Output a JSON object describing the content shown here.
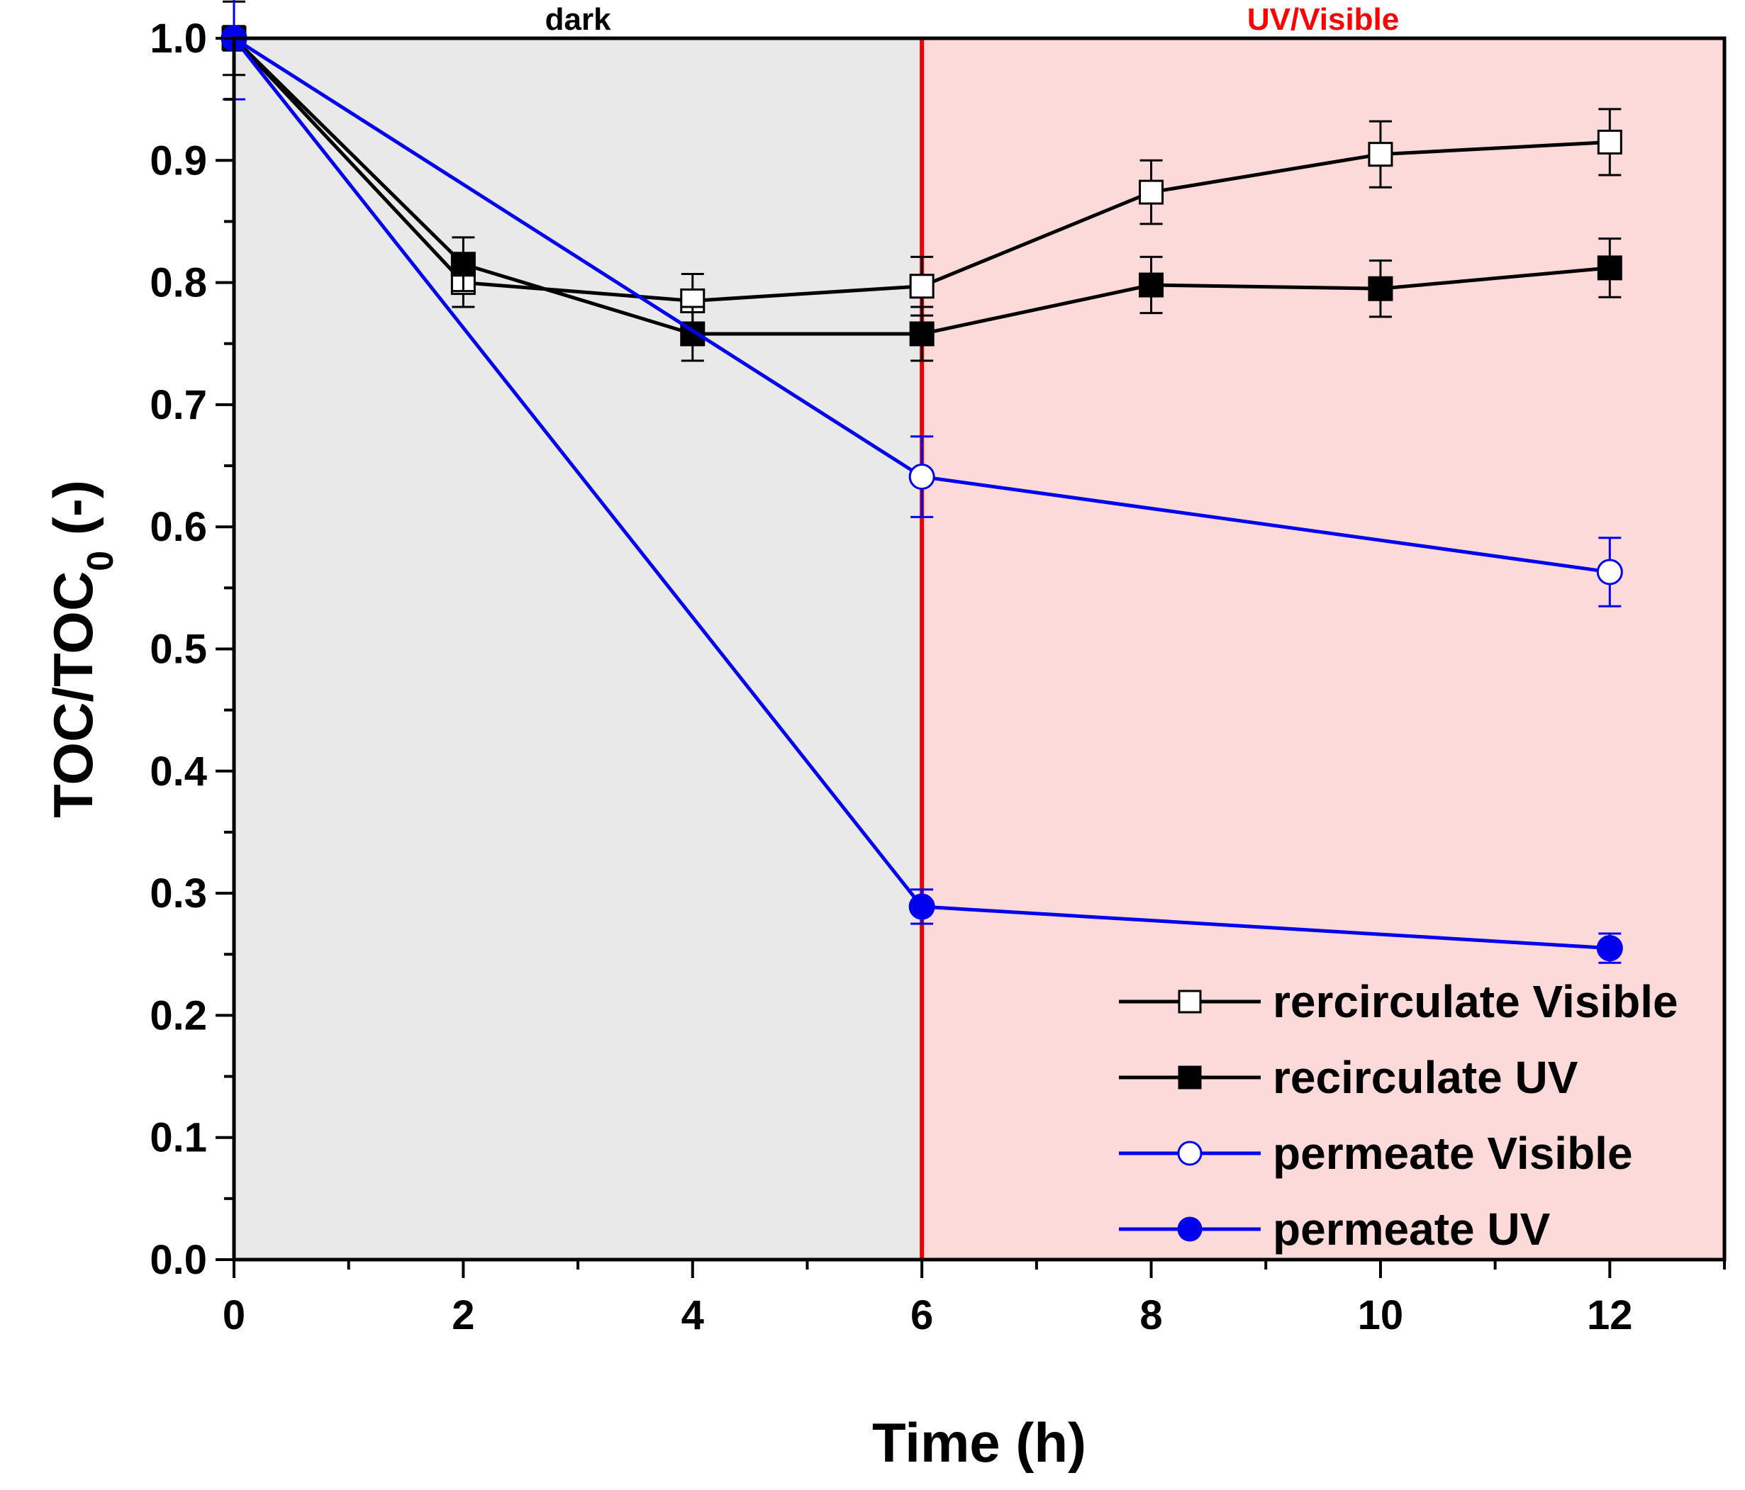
{
  "chart_data": {
    "type": "line",
    "title": "",
    "xlabel": "Time (h)",
    "ylabel_main": "TOC/TOC",
    "ylabel_sub": "0",
    "ylabel_suffix": " (-)",
    "xlim": [
      0,
      13
    ],
    "ylim": [
      0,
      1.0
    ],
    "xticks": [
      0,
      2,
      4,
      6,
      8,
      10,
      12
    ],
    "xtick_labels": [
      "0",
      "2",
      "4",
      "6",
      "8",
      "10",
      "12"
    ],
    "yticks": [
      0,
      0.1,
      0.2,
      0.3,
      0.4,
      0.5,
      0.6,
      0.7,
      0.8,
      0.9,
      1.0
    ],
    "ytick_labels": [
      "0.0",
      "0.1",
      "0.2",
      "0.3",
      "0.4",
      "0.5",
      "0.6",
      "0.7",
      "0.8",
      "0.9",
      "1.0"
    ],
    "regions": [
      {
        "name": "dark",
        "label": "dark",
        "x_start": 0,
        "x_end": 6,
        "color": "#e9e9e9",
        "label_color": "#000000"
      },
      {
        "name": "uv-visible",
        "label": "UV/Visible",
        "x_start": 6,
        "x_end": 13,
        "color": "#fddada",
        "label_color": "#ff0000"
      }
    ],
    "divider_x": 6,
    "divider_color": "#ee0000",
    "series": [
      {
        "name": "rercirculate Visible",
        "color": "#000000",
        "marker": "square",
        "filled": false,
        "x": [
          0,
          2,
          4,
          6,
          8,
          10,
          12
        ],
        "values": [
          1.0,
          0.8,
          0.785,
          0.797,
          0.874,
          0.905,
          0.915
        ],
        "errors": [
          0.03,
          0.02,
          0.022,
          0.024,
          0.026,
          0.027,
          0.027
        ]
      },
      {
        "name": "recirculate UV",
        "color": "#000000",
        "marker": "square",
        "filled": true,
        "x": [
          0,
          2,
          4,
          6,
          8,
          10,
          12
        ],
        "values": [
          1.0,
          0.815,
          0.758,
          0.758,
          0.798,
          0.795,
          0.812
        ],
        "errors": [
          0.01,
          0.022,
          0.022,
          0.022,
          0.023,
          0.023,
          0.024
        ]
      },
      {
        "name": "permeate Visible",
        "color": "#0000ee",
        "marker": "circle",
        "filled": false,
        "x": [
          0,
          6,
          12
        ],
        "values": [
          1.0,
          0.641,
          0.563
        ],
        "errors": [
          0.05,
          0.033,
          0.028
        ]
      },
      {
        "name": "permeate UV",
        "color": "#0000ee",
        "marker": "circle",
        "filled": true,
        "x": [
          0,
          6,
          12
        ],
        "values": [
          1.0,
          0.289,
          0.255
        ],
        "errors": [
          0.005,
          0.014,
          0.012
        ]
      }
    ],
    "legend_position": "bottom-right",
    "grid": false
  }
}
